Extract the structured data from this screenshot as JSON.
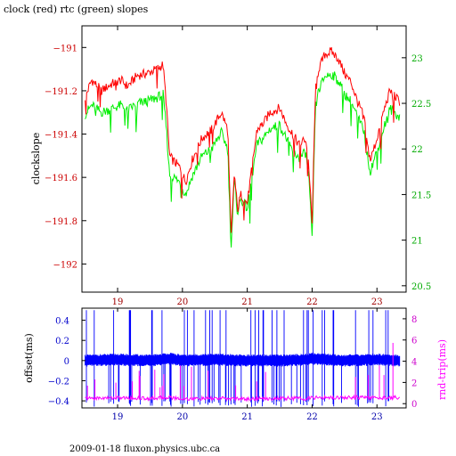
{
  "title": "clock (red) rtc (green) slopes",
  "footer": "2009-01-18 fluxon.physics.ubc.ca",
  "colors": {
    "clock": "#ff0000",
    "rtc": "#00ee00",
    "offset": "#0000ff",
    "rndtrip": "#ff00ff",
    "axis": "#000000",
    "background": "#ffffff"
  },
  "chart_data": [
    {
      "type": "line",
      "title": "clock (red) rtc (green) slopes",
      "xlabel": "",
      "ylabel": "clockslope",
      "y2label": "",
      "xlim": [
        18.45,
        23.45
      ],
      "ylim": [
        -192.13,
        -190.9
      ],
      "y2lim": [
        20.43,
        23.35
      ],
      "xticks": [
        19,
        20,
        21,
        22,
        23
      ],
      "xtick_labels": [
        "19",
        "20",
        "21",
        "22",
        "23"
      ],
      "yticks": [
        -191,
        -191.2,
        -191.4,
        -191.6,
        -191.8,
        -192
      ],
      "ytick_labels": [
        "−191",
        "−191.2",
        "−191.4",
        "−191.6",
        "−191.8",
        "−192"
      ],
      "y2ticks": [
        20.5,
        21,
        21.5,
        22,
        22.5,
        23
      ],
      "y2tick_labels": [
        "20.5",
        "21",
        "21.5",
        "22",
        "22.5",
        "23"
      ],
      "grid": false,
      "legend": "none",
      "series": [
        {
          "name": "clock",
          "axis": "left",
          "x": [
            18.5,
            18.6,
            18.75,
            18.9,
            19.05,
            19.15,
            19.3,
            19.45,
            19.6,
            19.7,
            19.75,
            19.8,
            19.85,
            19.95,
            20.05,
            20.15,
            20.3,
            20.45,
            20.6,
            20.7,
            20.75,
            20.8,
            20.85,
            20.9,
            21.0,
            21.15,
            21.25,
            21.35,
            21.5,
            21.6,
            21.7,
            21.8,
            21.9,
            21.95,
            22.0,
            22.05,
            22.1,
            22.2,
            22.3,
            22.4,
            22.5,
            22.6,
            22.7,
            22.8,
            22.85,
            22.9,
            23.0,
            23.1,
            23.2,
            23.35
          ],
          "y": [
            -191.23,
            -191.15,
            -191.2,
            -191.17,
            -191.15,
            -191.18,
            -191.13,
            -191.12,
            -191.1,
            -191.08,
            -191.25,
            -191.5,
            -191.52,
            -191.55,
            -191.62,
            -191.52,
            -191.42,
            -191.38,
            -191.3,
            -191.38,
            -191.88,
            -191.58,
            -191.75,
            -191.68,
            -191.72,
            -191.38,
            -191.35,
            -191.3,
            -191.28,
            -191.35,
            -191.4,
            -191.45,
            -191.42,
            -191.55,
            -191.82,
            -191.2,
            -191.1,
            -191.03,
            -191.02,
            -191.05,
            -191.12,
            -191.16,
            -191.25,
            -191.32,
            -191.45,
            -191.52,
            -191.42,
            -191.3,
            -191.2,
            -191.25
          ]
        },
        {
          "name": "rtc",
          "axis": "right",
          "x": [
            18.5,
            18.6,
            18.75,
            18.9,
            19.05,
            19.15,
            19.3,
            19.45,
            19.6,
            19.7,
            19.75,
            19.8,
            19.85,
            19.95,
            20.05,
            20.15,
            20.3,
            20.45,
            20.6,
            20.7,
            20.75,
            20.8,
            20.85,
            20.9,
            21.0,
            21.15,
            21.25,
            21.35,
            21.5,
            21.6,
            21.7,
            21.8,
            21.9,
            21.95,
            22.0,
            22.05,
            22.1,
            22.2,
            22.3,
            22.4,
            22.5,
            22.6,
            22.7,
            22.8,
            22.85,
            22.9,
            23.0,
            23.1,
            23.2,
            23.35
          ],
          "y": [
            22.38,
            22.48,
            22.4,
            22.44,
            22.48,
            22.42,
            22.5,
            22.52,
            22.56,
            22.6,
            22.25,
            21.72,
            21.7,
            21.64,
            21.5,
            21.7,
            21.92,
            22.0,
            22.18,
            22.0,
            20.92,
            21.65,
            21.3,
            21.45,
            21.35,
            22.05,
            22.12,
            22.22,
            22.26,
            22.12,
            21.98,
            21.9,
            21.96,
            21.68,
            21.0,
            22.44,
            22.64,
            22.8,
            22.82,
            22.76,
            22.6,
            22.52,
            22.35,
            22.2,
            21.92,
            21.76,
            21.98,
            22.22,
            22.44,
            22.35
          ]
        }
      ]
    },
    {
      "type": "line",
      "xlabel": "",
      "ylabel": "offset(ms)",
      "y2label": "rnd-trip(ms)",
      "xlim": [
        18.45,
        23.45
      ],
      "ylim": [
        -0.47,
        0.52
      ],
      "y2lim": [
        -0.4,
        9.0
      ],
      "xticks": [
        19,
        20,
        21,
        22,
        23
      ],
      "xtick_labels": [
        "19",
        "20",
        "21",
        "22",
        "23"
      ],
      "yticks": [
        0.4,
        0.2,
        0,
        -0.2,
        -0.4
      ],
      "ytick_labels": [
        "0.4",
        "0.2",
        "0",
        "−0.2",
        "−0.4"
      ],
      "y2ticks": [
        0,
        2,
        4,
        6,
        8
      ],
      "y2tick_labels": [
        "0",
        "2",
        "4",
        "6",
        "8"
      ],
      "grid": false,
      "legend": "none",
      "series": [
        {
          "name": "offset",
          "axis": "left",
          "x": [
            18.5,
            19.0,
            19.5,
            19.8,
            20.0,
            20.5,
            21.0,
            21.5,
            21.95,
            22.0,
            22.5,
            23.0,
            23.35
          ],
          "y": [
            0.0,
            0.01,
            0.0,
            0.02,
            0.0,
            0.01,
            0.0,
            0.0,
            0.01,
            0.02,
            0.0,
            0.01,
            0.0
          ]
        },
        {
          "name": "rnd-trip",
          "axis": "right",
          "x": [
            18.5,
            19.0,
            19.5,
            19.8,
            20.0,
            20.5,
            21.0,
            21.5,
            21.95,
            22.0,
            22.5,
            23.0,
            23.35
          ],
          "y": [
            0.5,
            0.55,
            0.5,
            0.6,
            0.45,
            0.5,
            0.45,
            0.5,
            0.5,
            0.55,
            0.6,
            0.55,
            0.6
          ]
        }
      ]
    }
  ]
}
